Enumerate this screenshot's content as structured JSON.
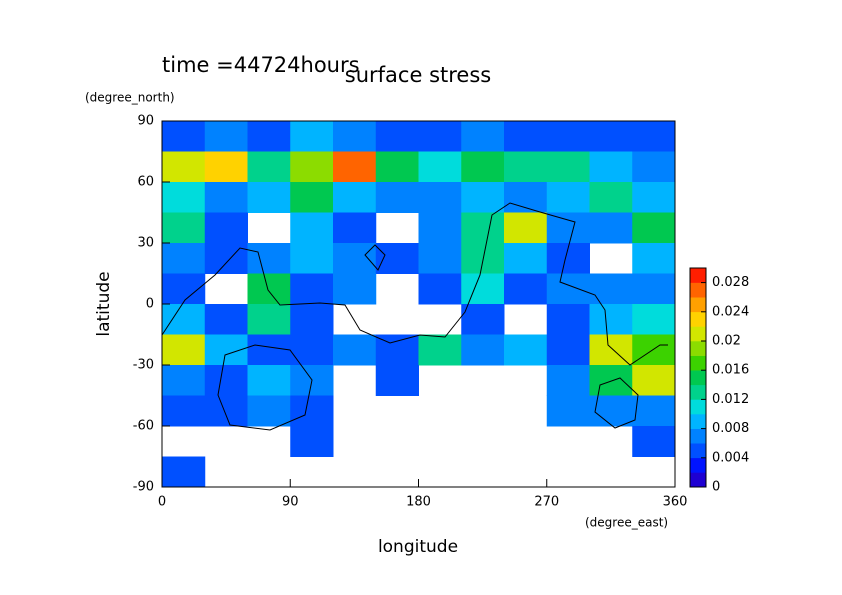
{
  "chart_data": {
    "type": "contour",
    "title": "surface stress",
    "subtitle": "time =44724hours",
    "x_label": "longitude",
    "x_unit": "(degree_east)",
    "y_label": "latitude",
    "y_unit": "(degree_north)",
    "xlim": [
      0,
      360
    ],
    "xticks": [
      0,
      90,
      180,
      270,
      360
    ],
    "ylim": [
      -90,
      90
    ],
    "yticks": [
      -90,
      -60,
      -30,
      0,
      30,
      60,
      90
    ],
    "z": [
      [
        0.004,
        0.006,
        0.004,
        0.008,
        0.006,
        0.004,
        0.004,
        0.006,
        0.004,
        0.004,
        0.004,
        0.004
      ],
      [
        0.02,
        0.022,
        0.012,
        0.018,
        0.026,
        0.014,
        0.01,
        0.014,
        0.012,
        0.012,
        0.008,
        0.006
      ],
      [
        0.01,
        0.006,
        0.008,
        0.014,
        0.008,
        0.006,
        0.006,
        0.008,
        0.006,
        0.008,
        0.012,
        0.008
      ],
      [
        0.012,
        0.004,
        null,
        0.008,
        0.004,
        null,
        0.006,
        0.012,
        0.02,
        0.006,
        0.006,
        0.014
      ],
      [
        0.006,
        0.004,
        0.006,
        0.008,
        0.006,
        0.004,
        0.006,
        0.012,
        0.008,
        0.004,
        null,
        0.008
      ],
      [
        0.004,
        null,
        0.014,
        0.004,
        0.006,
        null,
        0.004,
        0.01,
        0.004,
        0.006,
        0.006,
        0.006
      ],
      [
        0.008,
        0.004,
        0.012,
        0.004,
        null,
        null,
        null,
        0.004,
        null,
        0.004,
        0.008,
        0.01
      ],
      [
        0.02,
        0.008,
        0.004,
        0.004,
        0.006,
        0.004,
        0.012,
        0.006,
        0.008,
        0.004,
        0.02,
        0.016
      ],
      [
        0.006,
        0.004,
        0.008,
        0.006,
        null,
        0.004,
        null,
        null,
        null,
        0.006,
        0.014,
        0.02
      ],
      [
        0.004,
        0.004,
        0.006,
        0.004,
        null,
        null,
        null,
        null,
        null,
        0.006,
        0.006,
        0.006
      ],
      [
        null,
        null,
        null,
        0.004,
        null,
        null,
        null,
        null,
        null,
        null,
        null,
        0.004
      ],
      [
        0.004,
        null,
        null,
        null,
        null,
        null,
        null,
        null,
        null,
        null,
        null,
        null
      ]
    ],
    "colorbar": {
      "lim": [
        0,
        0.03
      ],
      "ticks": [
        0,
        0.004,
        0.008,
        0.012,
        0.016,
        0.02,
        0.024,
        0.028
      ],
      "colors": [
        "#1e00d2",
        "#0014ff",
        "#0050ff",
        "#0082ff",
        "#00b4ff",
        "#00dcdc",
        "#00d28c",
        "#00c850",
        "#3cd200",
        "#8cdc00",
        "#d2e600",
        "#ffd200",
        "#ffa000",
        "#ff6400",
        "#ff1e00"
      ]
    }
  }
}
